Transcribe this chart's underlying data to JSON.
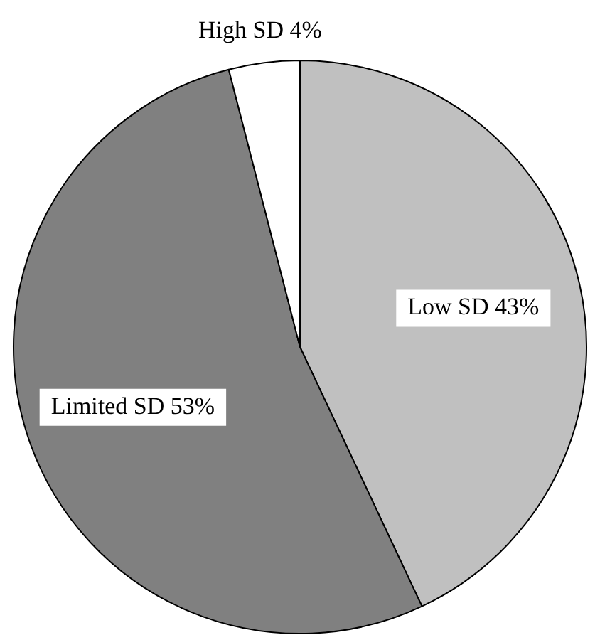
{
  "chart_data": {
    "type": "pie",
    "categories": [
      "Low SD",
      "Limited SD",
      "High SD"
    ],
    "values": [
      43,
      53,
      4
    ],
    "value_labels": [
      "43%",
      "53%",
      "4%"
    ],
    "colors": [
      "#c0c0c0",
      "#808080",
      "#ffffff"
    ],
    "legend": false
  }
}
